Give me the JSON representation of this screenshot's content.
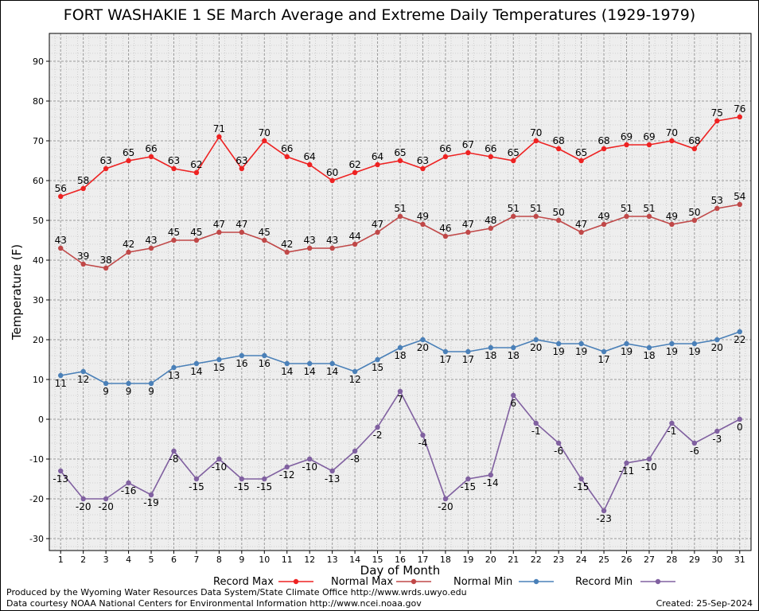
{
  "chart_data": {
    "type": "line",
    "title": "FORT WASHAKIE 1 SE March Average and Extreme Daily Temperatures (1929-1979)",
    "xlabel": "Day of Month",
    "ylabel": "Temperature (F)",
    "x": [
      1,
      2,
      3,
      4,
      5,
      6,
      7,
      8,
      9,
      10,
      11,
      12,
      13,
      14,
      15,
      16,
      17,
      18,
      19,
      20,
      21,
      22,
      23,
      24,
      25,
      26,
      27,
      28,
      29,
      30,
      31
    ],
    "ylim": [
      -33,
      97
    ],
    "yticks": [
      -30,
      -20,
      -10,
      0,
      10,
      20,
      30,
      40,
      50,
      60,
      70,
      80,
      90
    ],
    "grid": true,
    "legend_position": "bottom",
    "series": [
      {
        "name": "Record Max",
        "color": "#ee2222",
        "values": [
          56,
          58,
          63,
          65,
          66,
          63,
          62,
          71,
          63,
          70,
          66,
          64,
          60,
          62,
          64,
          65,
          63,
          66,
          67,
          66,
          65,
          70,
          68,
          65,
          68,
          69,
          69,
          70,
          68,
          75,
          76
        ]
      },
      {
        "name": "Normal Max",
        "color": "#c04848",
        "values": [
          43,
          39,
          38,
          42,
          43,
          45,
          45,
          47,
          47,
          45,
          42,
          43,
          43,
          44,
          47,
          51,
          49,
          46,
          47,
          48,
          51,
          51,
          50,
          47,
          49,
          51,
          51,
          49,
          50,
          53,
          54
        ]
      },
      {
        "name": "Normal Min",
        "color": "#4a80b8",
        "values": [
          11,
          12,
          9,
          9,
          9,
          13,
          14,
          15,
          16,
          16,
          14,
          14,
          14,
          12,
          15,
          18,
          20,
          17,
          17,
          18,
          18,
          20,
          19,
          19,
          17,
          19,
          18,
          19,
          19,
          20,
          22
        ]
      },
      {
        "name": "Record Min",
        "color": "#8060a0",
        "values": [
          -13,
          -20,
          -20,
          -16,
          -19,
          -8,
          -15,
          -10,
          -15,
          -15,
          -12,
          -10,
          -13,
          -8,
          -2,
          7,
          -4,
          -20,
          -15,
          -14,
          6,
          -1,
          -6,
          -15,
          -23,
          -11,
          -10,
          -1,
          -6,
          -3,
          0
        ]
      }
    ]
  },
  "footer": {
    "line1": "Produced by the Wyoming Water Resources Data System/State Climate Office http://www.wrds.uwyo.edu",
    "line2": "Data courtesy NOAA National Centers for Environmental Information http://www.ncei.noaa.gov",
    "created": "Created:  25-Sep-2024"
  }
}
